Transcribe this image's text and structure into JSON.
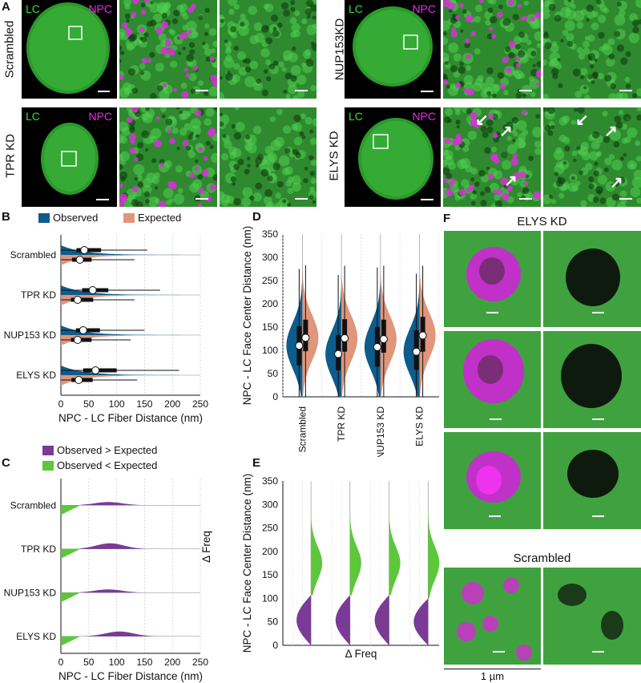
{
  "panels": {
    "a": "A",
    "b": "B",
    "c": "C",
    "d": "D",
    "e": "E",
    "f": "F"
  },
  "micro": {
    "lc": "LC",
    "npc": "NPC",
    "rows": [
      {
        "label": "Scrambled"
      },
      {
        "label": "NUP153KD"
      },
      {
        "label": "TPR KD"
      },
      {
        "label": "ELYS KD"
      }
    ]
  },
  "f_panel": {
    "top_title": "ELYS KD",
    "bottom_title": "Scrambled",
    "scale_label": "1 µm"
  },
  "colors": {
    "observed": "#0d5c8c",
    "expected": "#e0967a",
    "obs_gt": "#7a3a96",
    "obs_lt": "#5cc73a",
    "lc_green": "#2ee52e",
    "npc_magenta": "#e62ee6"
  },
  "chart_data": [
    {
      "id": "B",
      "type": "violin-box",
      "legend": [
        "Observed",
        "Expected"
      ],
      "categories": [
        "Scrambled",
        "TPR KD",
        "NUP153 KD",
        "ELYS KD"
      ],
      "xlabel": "NPC - LC Fiber Distance (nm)",
      "xlim": [
        0,
        250
      ],
      "xticks": [
        0,
        50,
        100,
        150,
        200,
        250
      ],
      "series": [
        {
          "name": "Observed",
          "median": [
            42,
            57,
            40,
            62
          ],
          "q1": [
            28,
            38,
            27,
            40
          ],
          "q3": [
            72,
            85,
            70,
            100
          ],
          "whisker_hi": [
            155,
            178,
            150,
            212
          ]
        },
        {
          "name": "Expected",
          "median": [
            34,
            30,
            30,
            32
          ],
          "q1": [
            20,
            18,
            18,
            19
          ],
          "q3": [
            55,
            58,
            55,
            57
          ],
          "whisker_hi": [
            132,
            132,
            125,
            137
          ]
        }
      ]
    },
    {
      "id": "C",
      "type": "area",
      "legend": [
        "Observed > Expected",
        "Observed < Expected"
      ],
      "categories": [
        "Scrambled",
        "TPR KD",
        "NUP153 KD",
        "ELYS KD"
      ],
      "xlabel": "NPC - LC Fiber Distance (nm)",
      "ylabel": "Δ Freq",
      "xlim": [
        0,
        250
      ],
      "xticks": [
        0,
        50,
        100,
        150,
        200,
        250
      ],
      "crossover_nm": [
        35,
        35,
        35,
        35
      ],
      "peak_above_nm": [
        85,
        88,
        85,
        105
      ]
    },
    {
      "id": "D",
      "type": "violin-box",
      "categories": [
        "Scrambled",
        "TPR KD",
        "NUP153 KD",
        "ELYS KD"
      ],
      "ylabel": "NPC - LC Face Center Distance (nm)",
      "ylim": [
        0,
        350
      ],
      "yticks": [
        0,
        50,
        100,
        150,
        200,
        250,
        300,
        350
      ],
      "series": [
        {
          "name": "Observed",
          "median": [
            110,
            92,
            107,
            97
          ],
          "q1": [
            68,
            57,
            65,
            58
          ],
          "q3": [
            152,
            133,
            150,
            143
          ],
          "whisker_lo": [
            0,
            0,
            0,
            0
          ],
          "whisker_hi": [
            275,
            262,
            278,
            265
          ]
        },
        {
          "name": "Expected",
          "median": [
            127,
            126,
            124,
            132
          ],
          "q1": [
            98,
            97,
            95,
            97
          ],
          "q3": [
            166,
            167,
            166,
            172
          ],
          "whisker_lo": [
            0,
            0,
            0,
            0
          ],
          "whisker_hi": [
            283,
            282,
            282,
            282
          ]
        }
      ]
    },
    {
      "id": "E",
      "type": "area",
      "categories": [
        "Scrambled",
        "TPR KD",
        "NUP153 KD",
        "ELYS KD"
      ],
      "ylabel": "NPC - LC Face Center Distance (nm)",
      "xlabel": "Δ Freq",
      "ylim": [
        0,
        350
      ],
      "yticks": [
        0,
        50,
        100,
        150,
        200,
        250,
        300,
        350
      ],
      "crossover_nm": [
        107,
        107,
        107,
        100
      ]
    }
  ]
}
